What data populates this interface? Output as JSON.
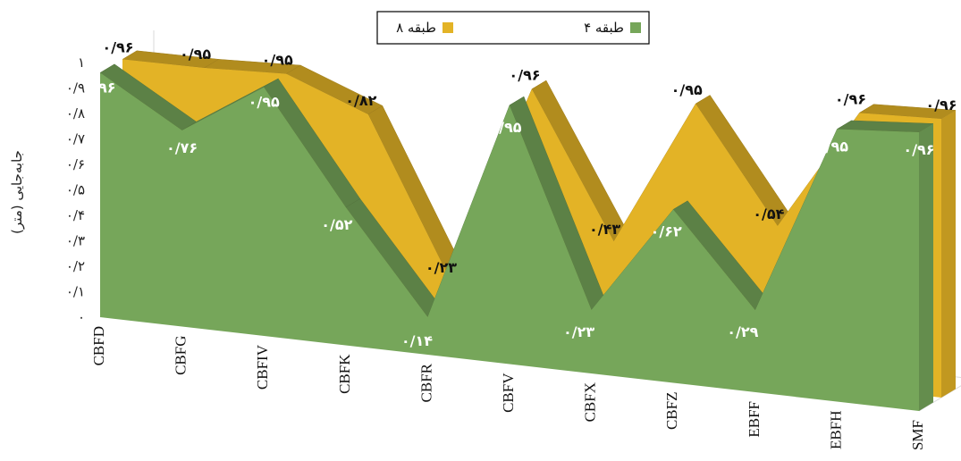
{
  "chart_data": {
    "type": "area",
    "categories": [
      "CBFD",
      "CBFG",
      "CBFIV",
      "CBFK",
      "CBFR",
      "CBFV",
      "CBFX",
      "CBFZ",
      "EBFF",
      "EBFH",
      "SMF"
    ],
    "series": [
      {
        "name": "۴ طبقه",
        "color": "#76a65a",
        "values": [
          0.96,
          0.76,
          0.95,
          0.52,
          0.14,
          0.95,
          0.23,
          0.62,
          0.29,
          0.95,
          0.96
        ],
        "labels": [
          "۰/۹۶",
          "۰/۷۶",
          "۰/۹۵",
          "۰/۵۲",
          "۰/۱۴",
          "۰/۹۵",
          "۰/۲۳",
          "۰/۶۲",
          "۰/۲۹",
          "۰/۹۵",
          "۰/۹۶"
        ]
      },
      {
        "name": "۸ طبقه",
        "color": "#e3b326",
        "values": [
          0.96,
          0.95,
          0.95,
          0.82,
          0.23,
          0.96,
          0.43,
          0.95,
          0.54,
          0.96,
          0.96
        ],
        "labels": [
          "۰/۹۶",
          "۰/۹۵",
          "۰/۹۵",
          "۰/۸۲",
          "۰/۲۳",
          "۰/۹۶",
          "۰/۴۳",
          "۰/۹۵",
          "۰/۵۴",
          "۰/۹۶",
          "۰/۹۶"
        ]
      }
    ],
    "ylabel": "جابه‌جایی (متر)",
    "ylim": [
      0,
      1
    ],
    "yticks": [
      "۰",
      "۰/۱",
      "۰/۲",
      "۰/۳",
      "۰/۴",
      "۰/۵",
      "۰/۶",
      "۰/۷",
      "۰/۸",
      "۰/۹",
      "۱"
    ],
    "legend_position": "top-center",
    "three_d": true,
    "grid": false
  }
}
